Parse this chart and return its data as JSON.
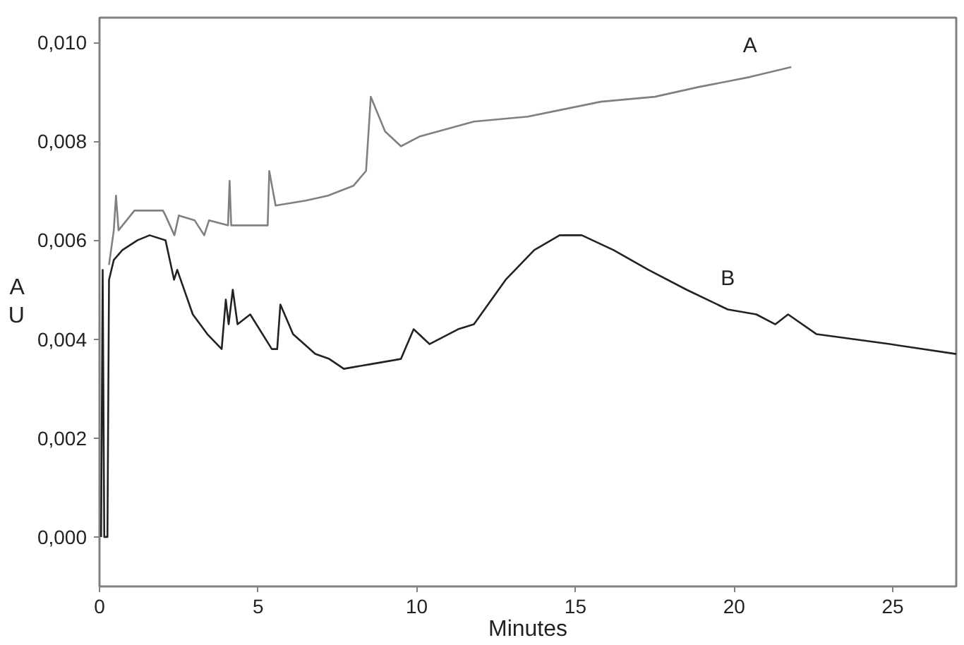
{
  "chart_data": {
    "type": "line",
    "xlabel": "Minutes",
    "ylabel": "A\nU",
    "xlim": [
      0,
      27
    ],
    "ylim": [
      -0.001,
      0.0105
    ],
    "xticks": [
      0,
      5,
      10,
      15,
      20,
      25
    ],
    "yticks": [
      {
        "value": 0,
        "label": "0,000"
      },
      {
        "value": 0.002,
        "label": "0,002"
      },
      {
        "value": 0.004,
        "label": "0,004"
      },
      {
        "value": 0.006,
        "label": "0,006"
      },
      {
        "value": 0.008,
        "label": "0,008"
      },
      {
        "value": 0.01,
        "label": "0,010"
      }
    ],
    "grid": false,
    "legend": false,
    "line_style": "solid",
    "marker": "none",
    "series": [
      {
        "name": "A",
        "color": "#808080",
        "x": [
          0.3,
          0.45,
          0.52,
          0.6,
          1.1,
          2.0,
          2.08,
          2.36,
          2.5,
          3.0,
          3.3,
          3.45,
          4.05,
          4.1,
          4.15,
          5.3,
          5.35,
          5.55,
          6.5,
          7.2,
          8.0,
          8.4,
          8.55,
          9.0,
          9.5,
          10.1,
          11.8,
          13.5,
          15.8,
          17.5,
          18.9,
          20.5,
          21.8
        ],
        "values": [
          0.0055,
          0.0062,
          0.0069,
          0.0062,
          0.0066,
          0.0066,
          0.0065,
          0.0061,
          0.0065,
          0.0064,
          0.0061,
          0.0064,
          0.0063,
          0.0072,
          0.0063,
          0.0063,
          0.0074,
          0.0067,
          0.0068,
          0.0069,
          0.0071,
          0.0074,
          0.0089,
          0.0082,
          0.0079,
          0.0081,
          0.0084,
          0.0085,
          0.0088,
          0.0089,
          0.0091,
          0.0093,
          0.0095
        ]
      },
      {
        "name": "B",
        "color": "#222222",
        "x": [
          0.05,
          0.1,
          0.15,
          0.25,
          0.3,
          0.45,
          0.72,
          1.2,
          1.58,
          2.08,
          2.35,
          2.45,
          2.94,
          3.4,
          3.85,
          3.98,
          4.07,
          4.2,
          4.35,
          4.75,
          5.43,
          5.6,
          5.7,
          6.1,
          6.8,
          7.24,
          7.7,
          8.6,
          9.5,
          9.9,
          10.4,
          11.3,
          11.8,
          12.8,
          13.7,
          14.5,
          15.2,
          16.2,
          17.3,
          18.5,
          19.8,
          20.7,
          21.3,
          21.7,
          22.6,
          24.9,
          27.0
        ],
        "values": [
          0.0,
          0.0054,
          0.0,
          0.0,
          0.0052,
          0.0056,
          0.0058,
          0.006,
          0.0061,
          0.006,
          0.0052,
          0.0054,
          0.0045,
          0.0041,
          0.0038,
          0.0048,
          0.0043,
          0.005,
          0.0043,
          0.0045,
          0.0038,
          0.0038,
          0.0047,
          0.0041,
          0.0037,
          0.0036,
          0.0034,
          0.0035,
          0.0036,
          0.0042,
          0.0039,
          0.0042,
          0.0043,
          0.0052,
          0.0058,
          0.0061,
          0.0061,
          0.0058,
          0.0054,
          0.005,
          0.0046,
          0.0045,
          0.0043,
          0.0045,
          0.0041,
          0.0039,
          0.0037
        ]
      }
    ]
  }
}
